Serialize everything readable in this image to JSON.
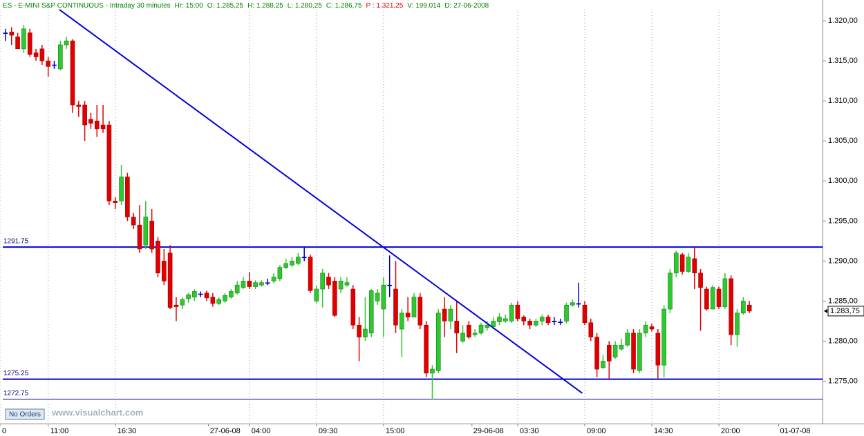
{
  "chart_data": {
    "type": "candlestick",
    "header": [
      "ES - E-MINI S&P CONTINUOUS - Intraday 30 minutes",
      "Hr: 15:00",
      "O: 1.285,25",
      "H: 1.288,25",
      "L: 1.280,25",
      "C: 1.286,75",
      "P : 1.321,25",
      "V: 199.014",
      "D: 27-06-2008"
    ],
    "ohlc": [
      [
        1318.5,
        1319,
        1317.5,
        1318.4
      ],
      [
        1318.6,
        1319.2,
        1317,
        1318.2
      ],
      [
        1318,
        1318.5,
        1316.5,
        1316.5
      ],
      [
        1316.5,
        1319.5,
        1316,
        1319
      ],
      [
        1318.5,
        1319,
        1315.5,
        1315.8
      ],
      [
        1316,
        1316.5,
        1315,
        1315.5
      ],
      [
        1316.5,
        1317,
        1314.5,
        1315
      ],
      [
        1315,
        1315.5,
        1313,
        1314.3
      ],
      [
        1314.5,
        1315,
        1314,
        1314.5
      ],
      [
        1314,
        1317.5,
        1313.8,
        1317
      ],
      [
        1317,
        1318,
        1316.5,
        1317.5
      ],
      [
        1317.5,
        1317.7,
        1308.5,
        1309.5
      ],
      [
        1309.5,
        1310,
        1308,
        1309.3
      ],
      [
        1309.5,
        1310,
        1305,
        1307
      ],
      [
        1307.7,
        1308.5,
        1306.5,
        1307.2
      ],
      [
        1307.5,
        1309.5,
        1305.5,
        1306.5
      ],
      [
        1307,
        1309.5,
        1306,
        1306.5
      ],
      [
        1307,
        1307.5,
        1297,
        1297.5
      ],
      [
        1297.5,
        1298,
        1296.5,
        1297.3
      ],
      [
        1297.5,
        1302,
        1297,
        1300.5
      ],
      [
        1300.5,
        1301,
        1295,
        1295.5
      ],
      [
        1295.5,
        1296,
        1294,
        1294.5
      ],
      [
        1294.5,
        1297,
        1291,
        1291.5
      ],
      [
        1292,
        1297.5,
        1291.5,
        1295.5
      ],
      [
        1295,
        1296.5,
        1291,
        1291.5
      ],
      [
        1292.5,
        1293,
        1288,
        1288.5
      ],
      [
        1290,
        1291.5,
        1287,
        1287.5
      ],
      [
        1291,
        1292,
        1284,
        1284.2
      ],
      [
        1284.5,
        1285.5,
        1282.5,
        1284.3
      ],
      [
        1284.5,
        1285.5,
        1284,
        1285.2
      ],
      [
        1285.3,
        1286,
        1284.8,
        1285.8
      ],
      [
        1285.5,
        1286.5,
        1285,
        1286.2
      ],
      [
        1285.8,
        1286.2,
        1285.5,
        1285.9
      ],
      [
        1286,
        1286.3,
        1285,
        1285.4
      ],
      [
        1285.5,
        1286,
        1284.3,
        1284.7
      ],
      [
        1284.7,
        1285.5,
        1284.5,
        1285.2
      ],
      [
        1285,
        1286,
        1284.8,
        1285.7
      ],
      [
        1285.5,
        1286.5,
        1285.3,
        1286.2
      ],
      [
        1286,
        1287.5,
        1285.8,
        1287
      ],
      [
        1286.7,
        1288,
        1286.5,
        1287.5
      ],
      [
        1287.5,
        1288.6,
        1286.5,
        1286.8
      ],
      [
        1286.8,
        1287.6,
        1286.5,
        1287.3
      ],
      [
        1287,
        1287.6,
        1286.8,
        1287.3
      ],
      [
        1287.2,
        1287.8,
        1287,
        1287.3
      ],
      [
        1287.5,
        1288.5,
        1287.2,
        1288
      ],
      [
        1287.8,
        1289.5,
        1287.5,
        1289.2
      ],
      [
        1289.2,
        1290.3,
        1289,
        1289.7
      ],
      [
        1289.5,
        1290.5,
        1289.3,
        1290
      ],
      [
        1289.7,
        1291,
        1289.5,
        1290.5
      ],
      [
        1290.5,
        1291.8,
        1290,
        1290.4
      ],
      [
        1290.5,
        1290.8,
        1286,
        1286.3
      ],
      [
        1285,
        1287,
        1284.7,
        1286.5
      ],
      [
        1286.5,
        1289,
        1284.2,
        1288.5
      ],
      [
        1288,
        1288.5,
        1286.5,
        1287
      ],
      [
        1287.5,
        1288,
        1283,
        1283.2
      ],
      [
        1286.5,
        1288,
        1286,
        1287.5
      ],
      [
        1287,
        1288,
        1286.8,
        1287.3
      ],
      [
        1286.5,
        1287,
        1281.5,
        1282
      ],
      [
        1282,
        1283,
        1277.5,
        1280.5
      ],
      [
        1280.5,
        1285.5,
        1280,
        1281.5
      ],
      [
        1281,
        1286.5,
        1280.5,
        1286.3
      ],
      [
        1285,
        1286.5,
        1284.5,
        1286
      ],
      [
        1284,
        1288,
        1280.5,
        1287
      ],
      [
        1287,
        1290.7,
        1285.5,
        1286.9
      ],
      [
        1286.5,
        1290,
        1281,
        1282
      ],
      [
        1281.5,
        1284,
        1278,
        1283.5
      ],
      [
        1283.5,
        1285.5,
        1282.5,
        1283
      ],
      [
        1283,
        1286,
        1283,
        1285.5
      ],
      [
        1285.5,
        1286,
        1281.5,
        1282
      ],
      [
        1282,
        1282.5,
        1275.5,
        1276
      ],
      [
        1276,
        1277,
        1272.7,
        1276.5
      ],
      [
        1276.3,
        1284,
        1276,
        1283.5
      ],
      [
        1284,
        1285.5,
        1280.5,
        1282.5
      ],
      [
        1282.5,
        1284.5,
        1281.5,
        1284
      ],
      [
        1282.5,
        1285,
        1278.5,
        1281
      ],
      [
        1280,
        1282,
        1279.8,
        1281
      ],
      [
        1282,
        1282.5,
        1280.3,
        1280.5
      ],
      [
        1280.8,
        1281.5,
        1280.5,
        1281
      ],
      [
        1281,
        1282.3,
        1280.8,
        1282
      ],
      [
        1281.7,
        1282.5,
        1281.3,
        1282
      ],
      [
        1281.8,
        1283,
        1281.5,
        1282.5
      ],
      [
        1282.4,
        1283.5,
        1282,
        1283
      ],
      [
        1282.5,
        1283.3,
        1282.3,
        1282.8
      ],
      [
        1282.5,
        1284.8,
        1282.3,
        1284.5
      ],
      [
        1284.5,
        1285,
        1282.5,
        1282.8
      ],
      [
        1283,
        1283.2,
        1282,
        1282.5
      ],
      [
        1282.5,
        1282.8,
        1281.5,
        1282
      ],
      [
        1282,
        1282.8,
        1281.8,
        1282.5
      ],
      [
        1282.5,
        1283.3,
        1282,
        1283
      ],
      [
        1283,
        1283.3,
        1282,
        1282.3
      ],
      [
        1282.5,
        1283,
        1282,
        1282.4
      ],
      [
        1282.3,
        1282.8,
        1282,
        1282.4
      ],
      [
        1282.5,
        1284.8,
        1282.2,
        1284.5
      ],
      [
        1284.5,
        1285.2,
        1284.3,
        1284.8
      ],
      [
        1284.7,
        1287.3,
        1284.2,
        1284.6
      ],
      [
        1284.5,
        1285,
        1282,
        1282.3
      ],
      [
        1282.3,
        1282.8,
        1280,
        1280.5
      ],
      [
        1280.5,
        1281,
        1275.5,
        1276.5
      ],
      [
        1276.7,
        1278.3,
        1276.5,
        1277.5
      ],
      [
        1279.5,
        1280,
        1275.3,
        1277.5
      ],
      [
        1278,
        1280,
        1277.8,
        1279.5
      ],
      [
        1279,
        1280.3,
        1278.8,
        1279.5
      ],
      [
        1279.5,
        1281.5,
        1279.3,
        1281
      ],
      [
        1281,
        1281.5,
        1276,
        1276.5
      ],
      [
        1276.3,
        1281.5,
        1276,
        1281
      ],
      [
        1281,
        1282.5,
        1280.5,
        1282
      ],
      [
        1281.8,
        1282.2,
        1281.2,
        1281.5
      ],
      [
        1281,
        1281.5,
        1275.3,
        1277
      ],
      [
        1277,
        1284.5,
        1275.5,
        1284
      ],
      [
        1284,
        1289,
        1283.5,
        1288.5
      ],
      [
        1288.5,
        1291.3,
        1288,
        1291
      ],
      [
        1290.8,
        1291,
        1288.3,
        1288.7
      ],
      [
        1288.7,
        1291,
        1288.5,
        1290.5
      ],
      [
        1290.3,
        1291.7,
        1286.5,
        1288.5
      ],
      [
        1288.5,
        1289,
        1281.3,
        1286.7
      ],
      [
        1286.5,
        1286.8,
        1283.8,
        1284
      ],
      [
        1284,
        1287,
        1284,
        1286.7
      ],
      [
        1286.5,
        1286.8,
        1284,
        1284.3
      ],
      [
        1284.3,
        1288.5,
        1284,
        1287.8
      ],
      [
        1287.8,
        1288.2,
        1279.5,
        1280.8
      ],
      [
        1280.8,
        1284,
        1279.3,
        1283.5
      ],
      [
        1283.5,
        1285.5,
        1283.3,
        1285
      ],
      [
        1284.5,
        1285,
        1283.5,
        1283.75
      ]
    ],
    "up_color": "#2ec92e",
    "down_color": "#e00000",
    "doji_color": "#0000cc",
    "xlim": [
      -0.9,
      134
    ],
    "xticks": [
      {
        "value": -0.9,
        "label": "0"
      },
      {
        "value": 7,
        "label": "11:00"
      },
      {
        "value": 18,
        "label": "16:30"
      },
      {
        "value": 40,
        "label": "04:00"
      },
      {
        "value": 51,
        "label": "09:30"
      },
      {
        "value": 62,
        "label": "15:00"
      },
      {
        "value": 84,
        "label": "03:30"
      },
      {
        "value": 95,
        "label": "09:00"
      },
      {
        "value": 106,
        "label": "14:30"
      },
      {
        "value": 117,
        "label": "20:00"
      }
    ],
    "date_ticks": [
      {
        "value": 33.3,
        "label": "27-06-08"
      },
      {
        "value": 76.5,
        "label": "29-06-08"
      },
      {
        "value": 126.8,
        "label": "01-07-08"
      }
    ],
    "grid": true,
    "ylim": [
      1269.7,
      1322.6
    ],
    "yticks": [
      {
        "value": 1275,
        "label": "1.275,00"
      },
      {
        "value": 1280,
        "label": "1.280,00"
      },
      {
        "value": 1285,
        "label": "1.285,00"
      },
      {
        "value": 1290,
        "label": "1.290,00"
      },
      {
        "value": 1295,
        "label": "1.295,00"
      },
      {
        "value": 1300,
        "label": "1.300,00"
      },
      {
        "value": 1305,
        "label": "1.305,00"
      },
      {
        "value": 1310,
        "label": "1.310,00"
      },
      {
        "value": 1315,
        "label": "1.315,00"
      },
      {
        "value": 1320,
        "label": "1.320,00"
      }
    ],
    "hlines": [
      1291.75,
      1275.25,
      1272.75
    ],
    "trendline": {
      "x": [
        8.84,
        94.6
      ],
      "y": [
        1321.4,
        1273.5
      ]
    },
    "last_price": {
      "value": 1283.75,
      "label": "1.283,75"
    },
    "orders_button": "No Orders",
    "watermark": "www.visualchart.com"
  }
}
